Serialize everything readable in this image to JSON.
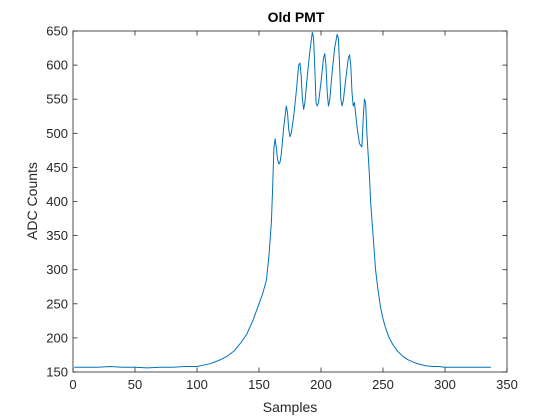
{
  "chart_data": {
    "type": "line",
    "title": "Old PMT",
    "xlabel": "Samples",
    "ylabel": "ADC Counts",
    "xlim": [
      0,
      350
    ],
    "ylim": [
      150,
      650
    ],
    "xticks": [
      0,
      50,
      100,
      150,
      200,
      250,
      300,
      350
    ],
    "yticks": [
      150,
      200,
      250,
      300,
      350,
      400,
      450,
      500,
      550,
      600,
      650
    ],
    "grid": false,
    "color": "#0072BD",
    "series": [
      {
        "x": [
          1,
          10,
          20,
          30,
          40,
          50,
          60,
          70,
          80,
          90,
          100,
          105,
          110,
          115,
          120,
          125,
          130,
          135,
          140,
          145,
          150,
          153,
          156,
          158,
          160,
          161,
          162,
          163,
          164,
          165,
          166,
          167,
          168,
          170,
          172,
          173,
          174,
          175,
          176,
          178,
          180,
          182,
          183,
          184,
          185,
          186,
          187,
          189,
          191,
          193,
          194,
          195,
          196,
          197,
          198,
          200,
          202,
          203,
          204,
          205,
          206,
          207,
          209,
          211,
          213,
          214,
          215,
          216,
          217,
          218,
          220,
          222,
          223,
          224,
          225,
          226,
          227,
          229,
          231,
          233,
          234,
          235,
          236,
          237,
          239,
          240,
          242,
          244,
          246,
          248,
          250,
          252,
          255,
          258,
          262,
          266,
          270,
          275,
          280,
          285,
          290,
          295,
          300,
          310,
          320,
          330,
          337
        ],
        "y": [
          157,
          157,
          157,
          158,
          157,
          157,
          156,
          157,
          157,
          158,
          158,
          160,
          162,
          165,
          169,
          174,
          181,
          192,
          205,
          225,
          250,
          265,
          285,
          320,
          370,
          420,
          478,
          492,
          478,
          462,
          455,
          458,
          470,
          510,
          540,
          530,
          505,
          495,
          500,
          525,
          560,
          600,
          603,
          585,
          550,
          535,
          545,
          585,
          620,
          648,
          640,
          595,
          545,
          540,
          545,
          575,
          610,
          617,
          600,
          560,
          540,
          548,
          590,
          625,
          645,
          640,
          600,
          550,
          540,
          548,
          580,
          610,
          615,
          600,
          560,
          540,
          545,
          510,
          485,
          480,
          520,
          550,
          545,
          500,
          440,
          400,
          350,
          300,
          270,
          245,
          228,
          215,
          200,
          190,
          180,
          173,
          168,
          164,
          161,
          159,
          158,
          158,
          157,
          157,
          157,
          157,
          157
        ]
      }
    ]
  }
}
